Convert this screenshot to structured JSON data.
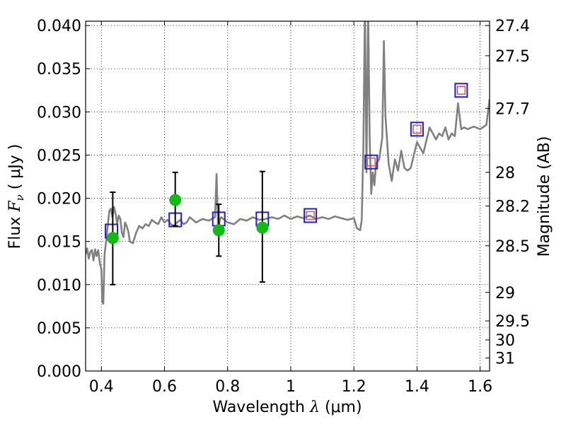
{
  "chart_data": {
    "type": "scatter",
    "xlabel_prefix": "Wavelength",
    "xlabel_symbol": "λ",
    "xlabel_units": "(μm)",
    "ylabel_prefix": "Flux",
    "ylabel_symbol": "F",
    "ylabel_subscript": "ν",
    "ylabel_units": "( μJy )",
    "y2label": "Magnitude (AB)",
    "xlim": [
      0.35,
      1.63
    ],
    "ylim": [
      0.0,
      0.0405
    ],
    "grid": true,
    "x_ticks": [
      0.4,
      0.6,
      0.8,
      1.0,
      1.2,
      1.4,
      1.6
    ],
    "x_tick_labels": [
      "0.4",
      "0.6",
      "0.8",
      "1",
      "1.2",
      "1.4",
      "1.6"
    ],
    "y_ticks": [
      0.0,
      0.005,
      0.01,
      0.015,
      0.02,
      0.025,
      0.03,
      0.035,
      0.04
    ],
    "y_tick_labels": [
      "0.000",
      "0.005",
      "0.010",
      "0.015",
      "0.020",
      "0.025",
      "0.030",
      "0.035",
      "0.040"
    ],
    "y2_ticks": [
      {
        "label": "27.4",
        "flux": 0.04
      },
      {
        "label": "27.5",
        "flux": 0.0365
      },
      {
        "label": "27.7",
        "flux": 0.0304
      },
      {
        "label": "28",
        "flux": 0.023
      },
      {
        "label": "28.2",
        "flux": 0.0191
      },
      {
        "label": "28.5",
        "flux": 0.0145
      },
      {
        "label": "29",
        "flux": 0.0091
      },
      {
        "label": "29.5",
        "flux": 0.0058
      },
      {
        "label": "30",
        "flux": 0.0036
      },
      {
        "label": "31",
        "flux": 0.0015
      }
    ],
    "series": [
      {
        "kind": "line",
        "color": "#808080",
        "x": [
          0.35,
          0.355,
          0.36,
          0.365,
          0.37,
          0.375,
          0.38,
          0.385,
          0.39,
          0.395,
          0.4,
          0.403,
          0.406,
          0.41,
          0.415,
          0.42,
          0.425,
          0.43,
          0.435,
          0.44,
          0.445,
          0.45,
          0.455,
          0.46,
          0.465,
          0.47,
          0.475,
          0.48,
          0.485,
          0.49,
          0.5,
          0.51,
          0.52,
          0.53,
          0.54,
          0.55,
          0.56,
          0.57,
          0.58,
          0.59,
          0.6,
          0.61,
          0.62,
          0.63,
          0.64,
          0.65,
          0.66,
          0.67,
          0.68,
          0.69,
          0.7,
          0.72,
          0.74,
          0.76,
          0.765,
          0.77,
          0.775,
          0.78,
          0.79,
          0.8,
          0.82,
          0.84,
          0.86,
          0.88,
          0.9,
          0.92,
          0.94,
          0.96,
          0.98,
          1.0,
          1.02,
          1.04,
          1.06,
          1.08,
          1.1,
          1.12,
          1.14,
          1.16,
          1.18,
          1.2,
          1.21,
          1.22,
          1.225,
          1.23,
          1.235,
          1.24,
          1.245,
          1.25,
          1.255,
          1.26,
          1.265,
          1.27,
          1.28,
          1.29,
          1.295,
          1.3,
          1.31,
          1.32,
          1.33,
          1.34,
          1.35,
          1.36,
          1.37,
          1.38,
          1.4,
          1.42,
          1.44,
          1.46,
          1.47,
          1.48,
          1.49,
          1.5,
          1.51,
          1.52,
          1.53,
          1.54,
          1.55,
          1.56,
          1.58,
          1.6,
          1.62,
          1.63
        ],
        "y": [
          0.0135,
          0.0142,
          0.013,
          0.0138,
          0.014,
          0.0128,
          0.0141,
          0.0133,
          0.014,
          0.0125,
          0.0118,
          0.008,
          0.0078,
          0.0135,
          0.015,
          0.0168,
          0.0185,
          0.0188,
          0.0178,
          0.019,
          0.0182,
          0.017,
          0.018,
          0.0176,
          0.016,
          0.0155,
          0.0172,
          0.0168,
          0.0162,
          0.015,
          0.0148,
          0.016,
          0.0168,
          0.0165,
          0.017,
          0.0168,
          0.0175,
          0.0172,
          0.017,
          0.0178,
          0.0172,
          0.0175,
          0.017,
          0.0168,
          0.0172,
          0.0175,
          0.017,
          0.0172,
          0.0178,
          0.0175,
          0.0172,
          0.0176,
          0.0174,
          0.0178,
          0.0228,
          0.016,
          0.0175,
          0.0178,
          0.0175,
          0.0172,
          0.017,
          0.0176,
          0.0174,
          0.0178,
          0.0175,
          0.0176,
          0.0178,
          0.0176,
          0.018,
          0.0176,
          0.0179,
          0.0177,
          0.018,
          0.0176,
          0.0178,
          0.0176,
          0.0179,
          0.0177,
          0.0175,
          0.0177,
          0.0165,
          0.0163,
          0.0175,
          0.026,
          0.042,
          0.023,
          0.042,
          0.027,
          0.0205,
          0.023,
          0.0215,
          0.024,
          0.0245,
          0.027,
          0.0382,
          0.0295,
          0.024,
          0.022,
          0.0245,
          0.0232,
          0.0255,
          0.0235,
          0.0232,
          0.0235,
          0.0265,
          0.0252,
          0.0282,
          0.0268,
          0.0275,
          0.0272,
          0.0282,
          0.0268,
          0.0275,
          0.0272,
          0.031,
          0.028,
          0.0282,
          0.028,
          0.0283,
          0.028,
          0.0285,
          0.0315
        ]
      },
      {
        "kind": "markers",
        "marker": "square",
        "edge_color": "#1f1fd6",
        "x": [
          0.432,
          0.634,
          0.772,
          0.91,
          1.062,
          1.255,
          1.4,
          1.54
        ],
        "y": [
          0.0162,
          0.0175,
          0.0176,
          0.0176,
          0.018,
          0.0242,
          0.028,
          0.0325
        ]
      },
      {
        "kind": "markers",
        "marker": "square-small",
        "edge_color": "#e05050",
        "x": [
          1.062,
          1.255,
          1.4,
          1.54
        ],
        "y": [
          0.018,
          0.0242,
          0.028,
          0.0325
        ]
      },
      {
        "kind": "errorbar",
        "color": "#000000",
        "x": [
          0.436,
          0.634,
          0.772,
          0.91
        ],
        "y_low": [
          0.01,
          0.0168,
          0.0133,
          0.0103
        ],
        "y_high": [
          0.0207,
          0.023,
          0.0193,
          0.0231
        ]
      },
      {
        "kind": "markers",
        "marker": "circle",
        "color": "#11bb11",
        "x": [
          0.436,
          0.634,
          0.772,
          0.91
        ],
        "y": [
          0.0154,
          0.0198,
          0.0163,
          0.0166
        ]
      }
    ]
  }
}
